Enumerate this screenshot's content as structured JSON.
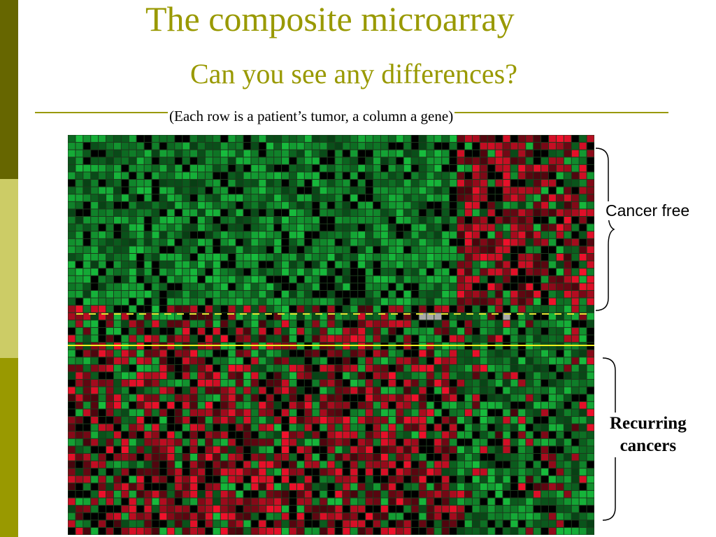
{
  "slide": {
    "title": "The composite microarray",
    "subtitle": "Can you see any differences?",
    "caption": "(Each row is a patient’s tumor, a column a gene)",
    "accent_color": "#999900",
    "sidebar_colors": [
      "#666600",
      "#cccc66",
      "#999900"
    ]
  },
  "heatmap": {
    "rows": 54,
    "columns": 69,
    "colors": {
      "high": "#e8102a",
      "low": "#16b43a",
      "neutral": "#000000",
      "missing": "#a8a8a8",
      "gridline": "#1c3a1c"
    },
    "groups": [
      {
        "label": "Cancer free",
        "rows": 23
      },
      {
        "label": "Recurring cancers",
        "rows": 31
      }
    ],
    "divider_colors": {
      "dashed": "#e6e632",
      "solid": "#f0f020"
    }
  },
  "labels": {
    "cancer_free": "Cancer free",
    "recurring_line1": "Recurring",
    "recurring_line2": "cancers"
  }
}
